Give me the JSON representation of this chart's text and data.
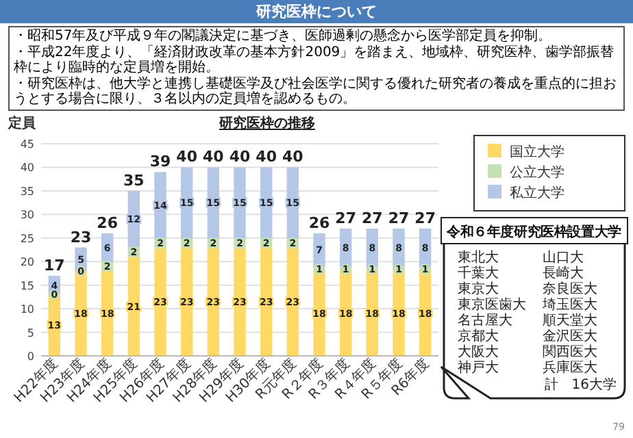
{
  "chart_data": {
    "type": "bar",
    "stacked": true,
    "title": "研究医枠について",
    "subtitle": "研究医枠の推移",
    "ylabel": "定員",
    "categories": [
      "H22年度",
      "H23年度",
      "H24年度",
      "H25年度",
      "H26年度",
      "H27年度",
      "H28年度",
      "H29年度",
      "H30年度",
      "R元年度",
      "R２年度",
      "R３年度",
      "R４年度",
      "R５年度",
      "R6年度"
    ],
    "series": [
      {
        "name": "国立大学",
        "color": "#ffd966",
        "values": [
          13,
          18,
          18,
          21,
          23,
          23,
          23,
          23,
          23,
          23,
          18,
          18,
          18,
          18,
          18
        ]
      },
      {
        "name": "公立大学",
        "color": "#c5e0b4",
        "values": [
          0,
          0,
          2,
          2,
          2,
          2,
          2,
          2,
          2,
          2,
          1,
          1,
          1,
          1,
          1
        ]
      },
      {
        "name": "私立大学",
        "color": "#b4c7e7",
        "values": [
          4,
          5,
          6,
          12,
          14,
          15,
          15,
          15,
          15,
          15,
          7,
          8,
          8,
          8,
          8
        ]
      }
    ],
    "totals": [
      "17",
      "23",
      "26",
      "35",
      "39",
      "40",
      "40",
      "40",
      "40",
      "40",
      "26",
      "27",
      "27",
      "27",
      "27"
    ],
    "ylim": [
      0,
      45
    ],
    "yticks": [
      0,
      5,
      10,
      15,
      20,
      25,
      30,
      35,
      40,
      45
    ],
    "grid": "y",
    "legend": "top right",
    "data_labels": true,
    "annotations": [
      "・昭和57年及び平成９年の閣議決定に基づき、医師過剰の懸念から医学部定員を抑制。",
      "・平成22年度より、「経済財政改革の基本方針2009」を踏まえ、地域枠、研究医枠、歯学部振替枠により臨時的な定員増を開始。",
      "・研究医枠は、他大学と連携し基礎医学及び社会医学に関する優れた研究者の養成を重点的に担おうとする場合に限り、３名以内の定員増を認めるもの。",
      "令和６年度研究医枠設置大学",
      "東北大",
      "千葉大",
      "東京大",
      "東京医歯大",
      "名古屋大",
      "京都大",
      "大阪大",
      "神戸大",
      "山口大",
      "長崎大",
      "奈良医大",
      "埼玉医大",
      "順天堂大",
      "金沢医大",
      "関西医大",
      "兵庫医大",
      "計　16大学",
      "79"
    ]
  }
}
